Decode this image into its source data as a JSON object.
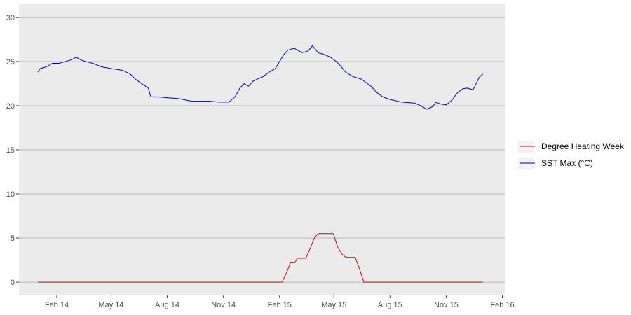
{
  "chart_data": {
    "type": "line",
    "title": "",
    "xlabel": "",
    "ylabel": "",
    "x_ticks": [
      "Feb 14",
      "May 14",
      "Aug 14",
      "Nov 14",
      "Feb 15",
      "May 15",
      "Aug 15",
      "Nov 15",
      "Feb 16"
    ],
    "y_ticks": [
      0,
      5,
      10,
      15,
      20,
      25,
      30
    ],
    "ylim": [
      -1.5,
      31.5
    ],
    "xlim": [
      "2013-12-01",
      "2016-02-05"
    ],
    "grid": true,
    "legend_position": "right",
    "series": [
      {
        "name": "Degree Heating Week",
        "color": "#cc0000",
        "points": [
          [
            "2014-01-01",
            0
          ],
          [
            "2015-02-05",
            0
          ],
          [
            "2015-02-12",
            1.0
          ],
          [
            "2015-02-19",
            2.2
          ],
          [
            "2015-02-26",
            2.2
          ],
          [
            "2015-03-02",
            2.7
          ],
          [
            "2015-03-16",
            2.7
          ],
          [
            "2015-03-23",
            3.8
          ],
          [
            "2015-03-30",
            5.0
          ],
          [
            "2015-04-05",
            5.5
          ],
          [
            "2015-04-30",
            5.5
          ],
          [
            "2015-05-07",
            4.0
          ],
          [
            "2015-05-14",
            3.2
          ],
          [
            "2015-05-21",
            2.8
          ],
          [
            "2015-06-05",
            2.8
          ],
          [
            "2015-06-12",
            1.5
          ],
          [
            "2015-06-19",
            0
          ],
          [
            "2015-12-31",
            0
          ]
        ]
      },
      {
        "name": "SST Max (°C)",
        "color": "#0000b3",
        "points": [
          [
            "2014-01-01",
            23.8
          ],
          [
            "2014-01-05",
            24.2
          ],
          [
            "2014-01-15",
            24.4
          ],
          [
            "2014-01-25",
            24.8
          ],
          [
            "2014-02-05",
            24.8
          ],
          [
            "2014-02-15",
            25.0
          ],
          [
            "2014-02-25",
            25.2
          ],
          [
            "2014-03-05",
            25.5
          ],
          [
            "2014-03-12",
            25.2
          ],
          [
            "2014-03-20",
            25.0
          ],
          [
            "2014-04-01",
            24.8
          ],
          [
            "2014-04-15",
            24.4
          ],
          [
            "2014-05-01",
            24.2
          ],
          [
            "2014-05-20",
            24.0
          ],
          [
            "2014-06-01",
            23.6
          ],
          [
            "2014-06-10",
            23.0
          ],
          [
            "2014-06-20",
            22.5
          ],
          [
            "2014-07-01",
            22.0
          ],
          [
            "2014-07-05",
            21.0
          ],
          [
            "2014-07-15",
            21.0
          ],
          [
            "2014-08-01",
            20.9
          ],
          [
            "2014-08-20",
            20.8
          ],
          [
            "2014-09-10",
            20.5
          ],
          [
            "2014-09-25",
            20.5
          ],
          [
            "2014-10-10",
            20.5
          ],
          [
            "2014-10-25",
            20.4
          ],
          [
            "2014-11-10",
            20.4
          ],
          [
            "2014-11-20",
            21.0
          ],
          [
            "2014-11-28",
            22.0
          ],
          [
            "2014-12-05",
            22.5
          ],
          [
            "2014-12-12",
            22.2
          ],
          [
            "2014-12-20",
            22.8
          ],
          [
            "2015-01-05",
            23.3
          ],
          [
            "2015-01-15",
            23.8
          ],
          [
            "2015-01-25",
            24.2
          ],
          [
            "2015-02-01",
            25.0
          ],
          [
            "2015-02-08",
            25.8
          ],
          [
            "2015-02-15",
            26.3
          ],
          [
            "2015-02-25",
            26.5
          ],
          [
            "2015-03-10",
            26.0
          ],
          [
            "2015-03-20",
            26.2
          ],
          [
            "2015-03-27",
            26.8
          ],
          [
            "2015-04-05",
            26.0
          ],
          [
            "2015-04-15",
            25.8
          ],
          [
            "2015-04-25",
            25.5
          ],
          [
            "2015-05-05",
            25.0
          ],
          [
            "2015-05-12",
            24.5
          ],
          [
            "2015-05-20",
            23.8
          ],
          [
            "2015-06-01",
            23.3
          ],
          [
            "2015-06-15",
            23.0
          ],
          [
            "2015-07-01",
            22.2
          ],
          [
            "2015-07-10",
            21.5
          ],
          [
            "2015-07-20",
            21.0
          ],
          [
            "2015-08-01",
            20.7
          ],
          [
            "2015-08-20",
            20.4
          ],
          [
            "2015-09-10",
            20.3
          ],
          [
            "2015-09-20",
            20.0
          ],
          [
            "2015-09-30",
            19.6
          ],
          [
            "2015-10-10",
            19.9
          ],
          [
            "2015-10-15",
            20.4
          ],
          [
            "2015-10-22",
            20.2
          ],
          [
            "2015-11-01",
            20.1
          ],
          [
            "2015-11-10",
            20.6
          ],
          [
            "2015-11-20",
            21.5
          ],
          [
            "2015-11-28",
            21.9
          ],
          [
            "2015-12-05",
            22.0
          ],
          [
            "2015-12-15",
            21.8
          ],
          [
            "2015-12-20",
            22.5
          ],
          [
            "2015-12-25",
            23.2
          ],
          [
            "2015-12-31",
            23.6
          ]
        ]
      }
    ]
  }
}
